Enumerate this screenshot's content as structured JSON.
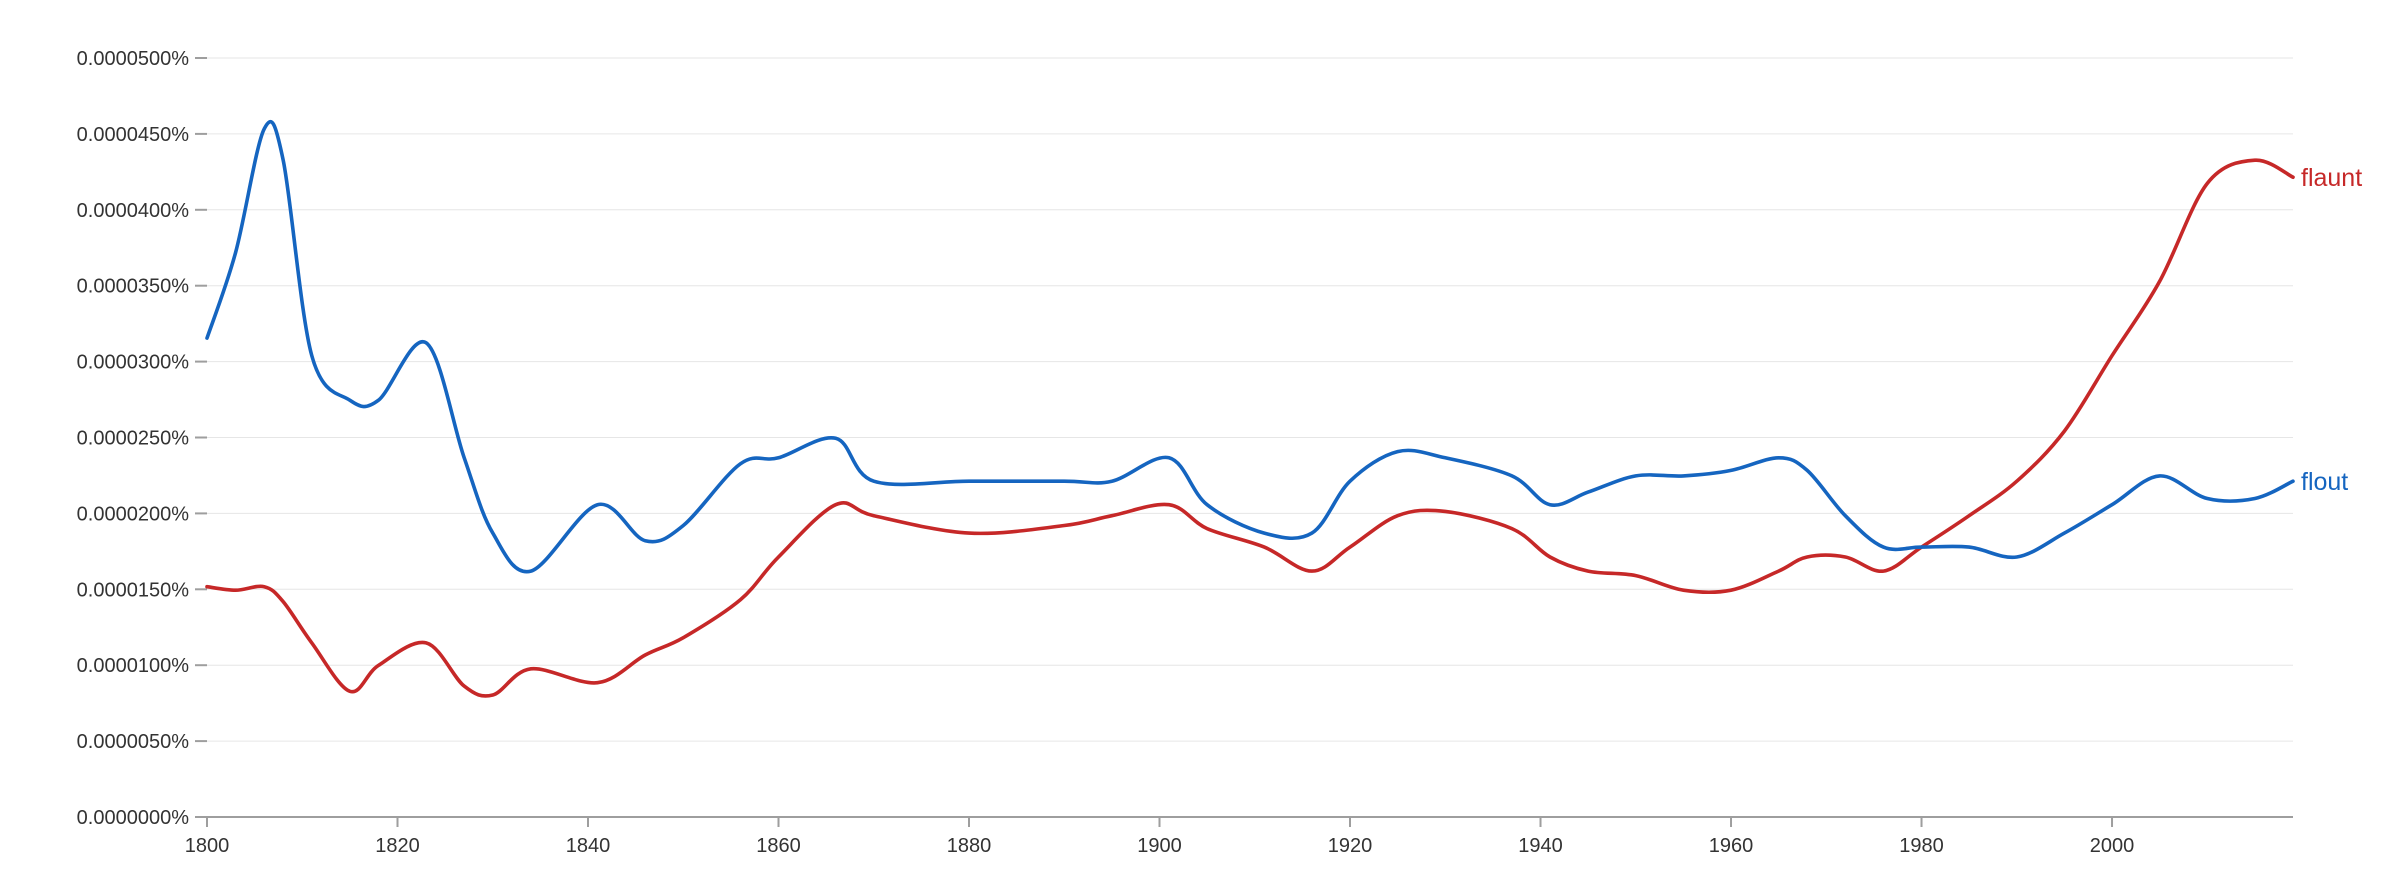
{
  "chart_data": {
    "type": "line",
    "title": "",
    "xlabel": "",
    "ylabel": "",
    "xlim": [
      1800,
      2019
    ],
    "ylim": [
      0,
      5e-07
    ],
    "grid": true,
    "legend": "inline labels at right end of each line",
    "x_ticks": [
      "1800",
      "1820",
      "1840",
      "1860",
      "1880",
      "1900",
      "1920",
      "1940",
      "1960",
      "1980",
      "2000"
    ],
    "y_ticks": [
      "0.0000000%",
      "0.0000050%",
      "0.0000100%",
      "0.0000150%",
      "0.0000200%",
      "0.0000250%",
      "0.0000300%",
      "0.0000350%",
      "0.0000400%",
      "0.0000450%",
      "0.0000500%"
    ],
    "x": [
      1800,
      1803,
      1806,
      1808,
      1811,
      1815,
      1818,
      1823,
      1827,
      1830,
      1834,
      1841,
      1846,
      1850,
      1856,
      1860,
      1866,
      1870,
      1880,
      1890,
      1895,
      1901,
      1905,
      1911,
      1916,
      1920,
      1925,
      1930,
      1937,
      1941,
      1945,
      1950,
      1955,
      1960,
      1965,
      1968,
      1972,
      1976,
      1980,
      1985,
      1990,
      1995,
      2000,
      2005,
      2010,
      2015,
      2019
    ],
    "series": [
      {
        "name": "flaunt",
        "color": "#c62828",
        "values": [
          1.517e-07,
          1.494e-07,
          1.517e-07,
          1.418e-07,
          1.147e-07,
          8.28e-08,
          9.99e-08,
          1.147e-07,
          8.62e-08,
          8.04e-08,
          9.76e-08,
          8.85e-08,
          1.067e-07,
          1.181e-07,
          1.431e-07,
          1.713e-07,
          2.057e-07,
          1.985e-07,
          1.87e-07,
          1.92e-07,
          1.985e-07,
          2.057e-07,
          1.9e-07,
          1.778e-07,
          1.62e-07,
          1.778e-07,
          1.985e-07,
          2.013e-07,
          1.9e-07,
          1.713e-07,
          1.62e-07,
          1.59e-07,
          1.494e-07,
          1.494e-07,
          1.62e-07,
          1.713e-07,
          1.713e-07,
          1.62e-07,
          1.778e-07,
          1.985e-07,
          2.212e-07,
          2.542e-07,
          3.039e-07,
          3.528e-07,
          4.174e-07,
          4.327e-07,
          4.215e-07
        ]
      },
      {
        "name": "flout",
        "color": "#1565c0",
        "values": [
          3.155e-07,
          3.719e-07,
          4.533e-07,
          4.327e-07,
          3.039e-07,
          2.746e-07,
          2.746e-07,
          3.124e-07,
          2.366e-07,
          1.87e-07,
          1.62e-07,
          2.057e-07,
          1.82e-07,
          1.92e-07,
          2.327e-07,
          2.366e-07,
          2.495e-07,
          2.212e-07,
          2.212e-07,
          2.212e-07,
          2.212e-07,
          2.366e-07,
          2.057e-07,
          1.87e-07,
          1.87e-07,
          2.212e-07,
          2.407e-07,
          2.366e-07,
          2.247e-07,
          2.057e-07,
          2.14e-07,
          2.247e-07,
          2.247e-07,
          2.283e-07,
          2.366e-07,
          2.283e-07,
          1.985e-07,
          1.778e-07,
          1.778e-07,
          1.778e-07,
          1.713e-07,
          1.87e-07,
          2.057e-07,
          2.247e-07,
          2.098e-07,
          2.098e-07,
          2.212e-07
        ]
      }
    ]
  }
}
